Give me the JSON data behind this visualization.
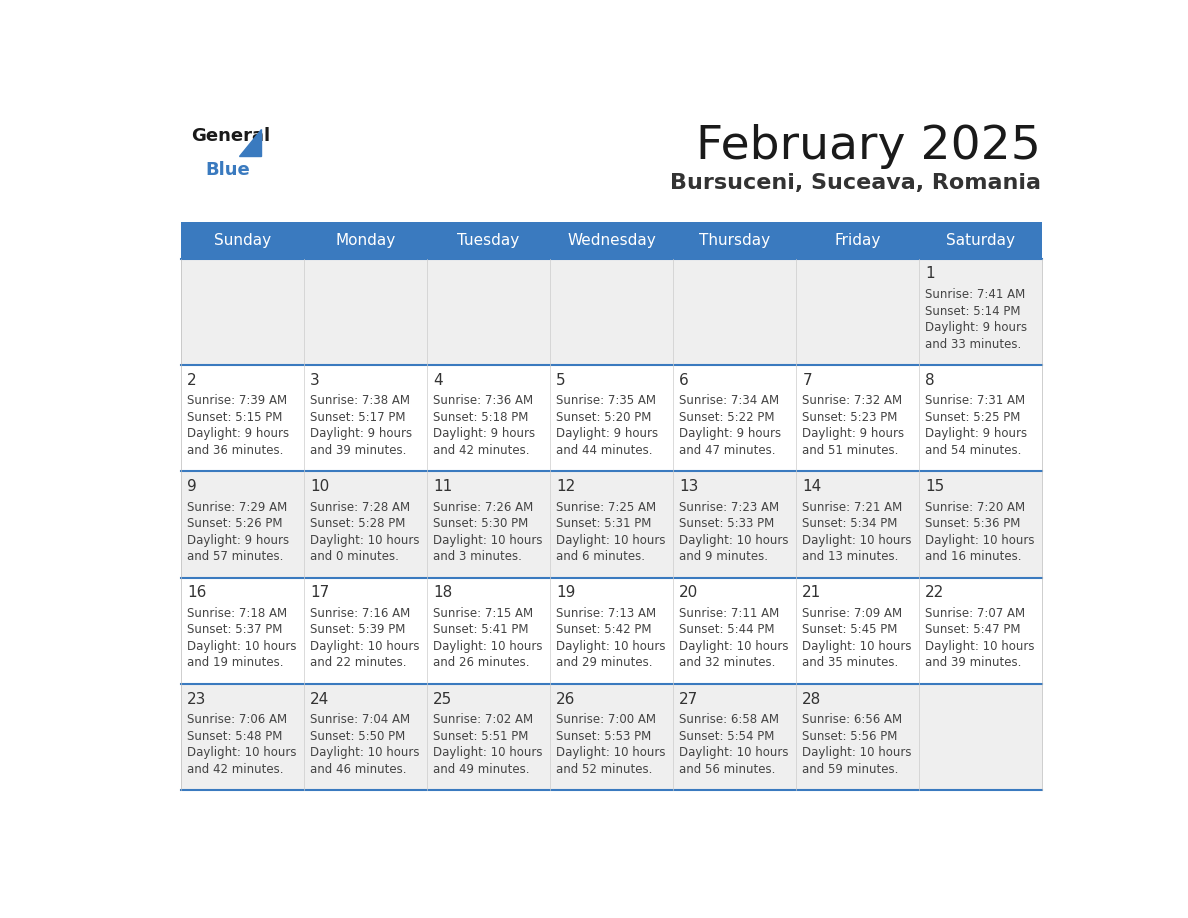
{
  "title": "February 2025",
  "subtitle": "Bursuceni, Suceava, Romania",
  "header_color": "#3a7abf",
  "header_text_color": "#ffffff",
  "cell_bg_odd": "#efefef",
  "cell_bg_even": "#ffffff",
  "day_number_color": "#333333",
  "text_color": "#444444",
  "line_color": "#3a7abf",
  "days_of_week": [
    "Sunday",
    "Monday",
    "Tuesday",
    "Wednesday",
    "Thursday",
    "Friday",
    "Saturday"
  ],
  "calendar_data": [
    [
      null,
      null,
      null,
      null,
      null,
      null,
      {
        "day": "1",
        "sunrise": "7:41 AM",
        "sunset": "5:14 PM",
        "daylight_line1": "Daylight: 9 hours",
        "daylight_line2": "and 33 minutes."
      }
    ],
    [
      {
        "day": "2",
        "sunrise": "7:39 AM",
        "sunset": "5:15 PM",
        "daylight_line1": "Daylight: 9 hours",
        "daylight_line2": "and 36 minutes."
      },
      {
        "day": "3",
        "sunrise": "7:38 AM",
        "sunset": "5:17 PM",
        "daylight_line1": "Daylight: 9 hours",
        "daylight_line2": "and 39 minutes."
      },
      {
        "day": "4",
        "sunrise": "7:36 AM",
        "sunset": "5:18 PM",
        "daylight_line1": "Daylight: 9 hours",
        "daylight_line2": "and 42 minutes."
      },
      {
        "day": "5",
        "sunrise": "7:35 AM",
        "sunset": "5:20 PM",
        "daylight_line1": "Daylight: 9 hours",
        "daylight_line2": "and 44 minutes."
      },
      {
        "day": "6",
        "sunrise": "7:34 AM",
        "sunset": "5:22 PM",
        "daylight_line1": "Daylight: 9 hours",
        "daylight_line2": "and 47 minutes."
      },
      {
        "day": "7",
        "sunrise": "7:32 AM",
        "sunset": "5:23 PM",
        "daylight_line1": "Daylight: 9 hours",
        "daylight_line2": "and 51 minutes."
      },
      {
        "day": "8",
        "sunrise": "7:31 AM",
        "sunset": "5:25 PM",
        "daylight_line1": "Daylight: 9 hours",
        "daylight_line2": "and 54 minutes."
      }
    ],
    [
      {
        "day": "9",
        "sunrise": "7:29 AM",
        "sunset": "5:26 PM",
        "daylight_line1": "Daylight: 9 hours",
        "daylight_line2": "and 57 minutes."
      },
      {
        "day": "10",
        "sunrise": "7:28 AM",
        "sunset": "5:28 PM",
        "daylight_line1": "Daylight: 10 hours",
        "daylight_line2": "and 0 minutes."
      },
      {
        "day": "11",
        "sunrise": "7:26 AM",
        "sunset": "5:30 PM",
        "daylight_line1": "Daylight: 10 hours",
        "daylight_line2": "and 3 minutes."
      },
      {
        "day": "12",
        "sunrise": "7:25 AM",
        "sunset": "5:31 PM",
        "daylight_line1": "Daylight: 10 hours",
        "daylight_line2": "and 6 minutes."
      },
      {
        "day": "13",
        "sunrise": "7:23 AM",
        "sunset": "5:33 PM",
        "daylight_line1": "Daylight: 10 hours",
        "daylight_line2": "and 9 minutes."
      },
      {
        "day": "14",
        "sunrise": "7:21 AM",
        "sunset": "5:34 PM",
        "daylight_line1": "Daylight: 10 hours",
        "daylight_line2": "and 13 minutes."
      },
      {
        "day": "15",
        "sunrise": "7:20 AM",
        "sunset": "5:36 PM",
        "daylight_line1": "Daylight: 10 hours",
        "daylight_line2": "and 16 minutes."
      }
    ],
    [
      {
        "day": "16",
        "sunrise": "7:18 AM",
        "sunset": "5:37 PM",
        "daylight_line1": "Daylight: 10 hours",
        "daylight_line2": "and 19 minutes."
      },
      {
        "day": "17",
        "sunrise": "7:16 AM",
        "sunset": "5:39 PM",
        "daylight_line1": "Daylight: 10 hours",
        "daylight_line2": "and 22 minutes."
      },
      {
        "day": "18",
        "sunrise": "7:15 AM",
        "sunset": "5:41 PM",
        "daylight_line1": "Daylight: 10 hours",
        "daylight_line2": "and 26 minutes."
      },
      {
        "day": "19",
        "sunrise": "7:13 AM",
        "sunset": "5:42 PM",
        "daylight_line1": "Daylight: 10 hours",
        "daylight_line2": "and 29 minutes."
      },
      {
        "day": "20",
        "sunrise": "7:11 AM",
        "sunset": "5:44 PM",
        "daylight_line1": "Daylight: 10 hours",
        "daylight_line2": "and 32 minutes."
      },
      {
        "day": "21",
        "sunrise": "7:09 AM",
        "sunset": "5:45 PM",
        "daylight_line1": "Daylight: 10 hours",
        "daylight_line2": "and 35 minutes."
      },
      {
        "day": "22",
        "sunrise": "7:07 AM",
        "sunset": "5:47 PM",
        "daylight_line1": "Daylight: 10 hours",
        "daylight_line2": "and 39 minutes."
      }
    ],
    [
      {
        "day": "23",
        "sunrise": "7:06 AM",
        "sunset": "5:48 PM",
        "daylight_line1": "Daylight: 10 hours",
        "daylight_line2": "and 42 minutes."
      },
      {
        "day": "24",
        "sunrise": "7:04 AM",
        "sunset": "5:50 PM",
        "daylight_line1": "Daylight: 10 hours",
        "daylight_line2": "and 46 minutes."
      },
      {
        "day": "25",
        "sunrise": "7:02 AM",
        "sunset": "5:51 PM",
        "daylight_line1": "Daylight: 10 hours",
        "daylight_line2": "and 49 minutes."
      },
      {
        "day": "26",
        "sunrise": "7:00 AM",
        "sunset": "5:53 PM",
        "daylight_line1": "Daylight: 10 hours",
        "daylight_line2": "and 52 minutes."
      },
      {
        "day": "27",
        "sunrise": "6:58 AM",
        "sunset": "5:54 PM",
        "daylight_line1": "Daylight: 10 hours",
        "daylight_line2": "and 56 minutes."
      },
      {
        "day": "28",
        "sunrise": "6:56 AM",
        "sunset": "5:56 PM",
        "daylight_line1": "Daylight: 10 hours",
        "daylight_line2": "and 59 minutes."
      },
      null
    ]
  ]
}
